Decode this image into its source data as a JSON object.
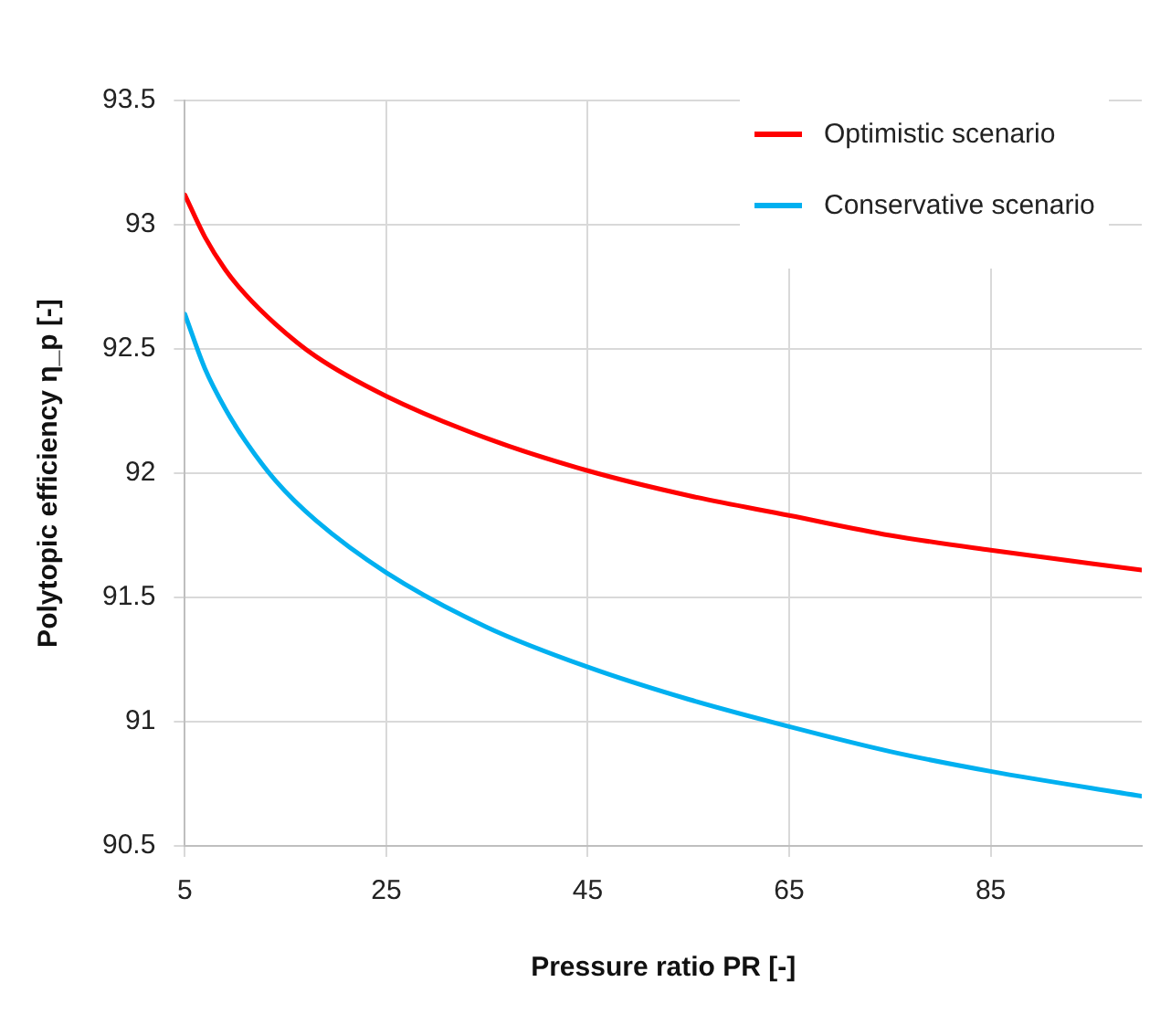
{
  "chart_data": {
    "type": "line",
    "xlabel": "Pressure ratio PR [-]",
    "ylabel": "Polytopic efficiency η_p [-]",
    "x": [
      5,
      7,
      9,
      11,
      14,
      18,
      25,
      35,
      45,
      55,
      65,
      75,
      85,
      100
    ],
    "series": [
      {
        "name": "Optimistic scenario",
        "color": "#ff0000",
        "values": [
          93.12,
          92.95,
          92.82,
          92.72,
          92.6,
          92.47,
          92.31,
          92.14,
          92.01,
          91.91,
          91.83,
          91.75,
          91.69,
          91.61
        ]
      },
      {
        "name": "Conservative scenario",
        "color": "#00b0f0",
        "values": [
          92.64,
          92.42,
          92.26,
          92.13,
          91.97,
          91.81,
          91.6,
          91.38,
          91.22,
          91.09,
          90.98,
          90.88,
          90.8,
          90.7
        ]
      }
    ],
    "xlim": [
      5,
      100
    ],
    "xticks": [
      5,
      25,
      45,
      65,
      85
    ],
    "ylim": [
      90.5,
      93.5
    ],
    "yticks": [
      90.5,
      91,
      91.5,
      92,
      92.5,
      93,
      93.5
    ],
    "grid": true,
    "legend": "top right",
    "marker": "none",
    "line_style": "solid"
  }
}
